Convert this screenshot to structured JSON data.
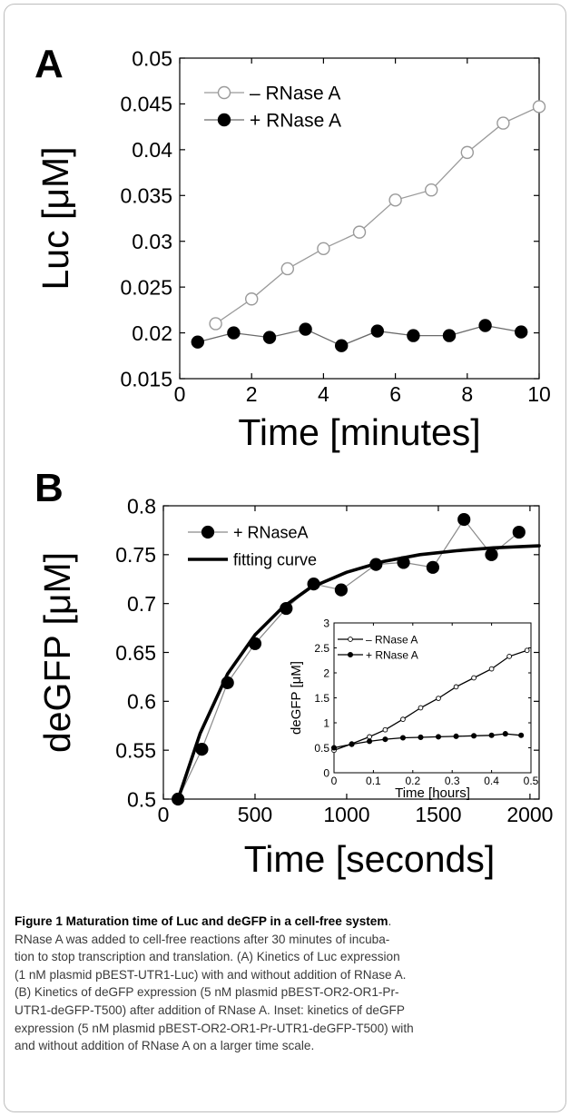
{
  "chart_data": [
    {
      "type": "line",
      "panel": "A",
      "xlabel": "Time [minutes]",
      "ylabel": "Luc [μM]",
      "xlim": [
        0,
        10
      ],
      "ylim": [
        0.015,
        0.05
      ],
      "xticks": [
        "0",
        "2",
        "4",
        "6",
        "8",
        "10"
      ],
      "yticks": [
        "0.015",
        "0.02",
        "0.025",
        "0.03",
        "0.035",
        "0.04",
        "0.045",
        "0.05"
      ],
      "legend": "top-left",
      "grid": false,
      "series": [
        {
          "name": "– RNase A",
          "marker": "open-circle",
          "x": [
            1,
            2,
            3,
            4,
            5,
            6,
            7,
            8,
            9,
            10
          ],
          "y": [
            0.021,
            0.0237,
            0.027,
            0.0292,
            0.031,
            0.0345,
            0.0356,
            0.0397,
            0.0429,
            0.0447
          ]
        },
        {
          "name": "+ RNase A",
          "marker": "filled-circle",
          "x": [
            0.5,
            1.5,
            2.5,
            3.5,
            4.5,
            5.5,
            6.5,
            7.5,
            8.5,
            9.5
          ],
          "y": [
            0.019,
            0.02,
            0.0195,
            0.0204,
            0.0186,
            0.0202,
            0.0197,
            0.0197,
            0.0208,
            0.0201
          ]
        }
      ]
    },
    {
      "type": "line",
      "panel": "B",
      "xlabel": "Time [seconds]",
      "ylabel": "deGFP [μM]",
      "xlim": [
        0,
        2050
      ],
      "ylim": [
        0.5,
        0.8
      ],
      "xticks": [
        "0",
        "500",
        "1000",
        "1500",
        "2000"
      ],
      "yticks": [
        "0.5",
        "0.55",
        "0.6",
        "0.65",
        "0.7",
        "0.75",
        "0.8"
      ],
      "legend": "top-left",
      "grid": false,
      "series": [
        {
          "name": "+ RNaseA",
          "marker": "filled-circle",
          "x": [
            80,
            210,
            350,
            500,
            670,
            820,
            970,
            1160,
            1310,
            1470,
            1640,
            1790,
            1940
          ],
          "y": [
            0.5,
            0.551,
            0.619,
            0.659,
            0.695,
            0.72,
            0.714,
            0.74,
            0.742,
            0.737,
            0.786,
            0.75,
            0.773
          ]
        },
        {
          "name": "fitting curve",
          "marker": "none",
          "x": [
            80,
            200,
            350,
            500,
            650,
            800,
            1000,
            1200,
            1400,
            1600,
            1800,
            2050
          ],
          "y": [
            0.5,
            0.567,
            0.628,
            0.668,
            0.696,
            0.716,
            0.732,
            0.743,
            0.75,
            0.754,
            0.757,
            0.759
          ]
        }
      ]
    },
    {
      "type": "line",
      "panel": "B-inset",
      "xlabel": "Time [hours]",
      "ylabel": "deGFP [μM]",
      "xlim": [
        0,
        0.5
      ],
      "ylim": [
        0,
        3
      ],
      "xticks": [
        "0",
        "0.1",
        "0.2",
        "0.3",
        "0.4",
        "0.5"
      ],
      "yticks": [
        "0",
        "0.5",
        "1",
        "1.5",
        "2",
        "2.5",
        "3"
      ],
      "legend": "top-left",
      "grid": false,
      "series": [
        {
          "name": "– RNase A",
          "marker": "open-circle",
          "x": [
            0,
            0.045,
            0.09,
            0.13,
            0.175,
            0.22,
            0.265,
            0.31,
            0.355,
            0.4,
            0.445,
            0.49
          ],
          "y": [
            0.45,
            0.58,
            0.72,
            0.86,
            1.07,
            1.3,
            1.49,
            1.72,
            1.9,
            2.08,
            2.33,
            2.45
          ]
        },
        {
          "name": "+ RNase A",
          "marker": "filled-circle",
          "x": [
            0,
            0.045,
            0.09,
            0.13,
            0.175,
            0.22,
            0.265,
            0.31,
            0.355,
            0.4,
            0.435,
            0.475
          ],
          "y": [
            0.5,
            0.57,
            0.63,
            0.67,
            0.7,
            0.71,
            0.72,
            0.73,
            0.74,
            0.75,
            0.78,
            0.75
          ]
        }
      ]
    }
  ],
  "panel_labels": {
    "a": "A",
    "b": "B"
  },
  "caption": {
    "title": "Figure 1 Maturation time of Luc and deGFP in a cell-free system",
    "title_end": ".",
    "lines": [
      "RNase A was added to cell-free reactions after 30 minutes of incuba-",
      "tion to stop transcription and translation. (A) Kinetics of Luc expression",
      "(1 nM plasmid pBEST-UTR1-Luc) with and without addition of RNase A.",
      "(B) Kinetics of deGFP expression (5 nM plasmid pBEST-OR2-OR1-Pr-",
      "UTR1-deGFP-T500) after addition of RNase A. Inset: kinetics of deGFP",
      "expression (5 nM plasmid pBEST-OR2-OR1-Pr-UTR1-deGFP-T500) with",
      "and without addition of RNase A on a larger time scale."
    ]
  }
}
